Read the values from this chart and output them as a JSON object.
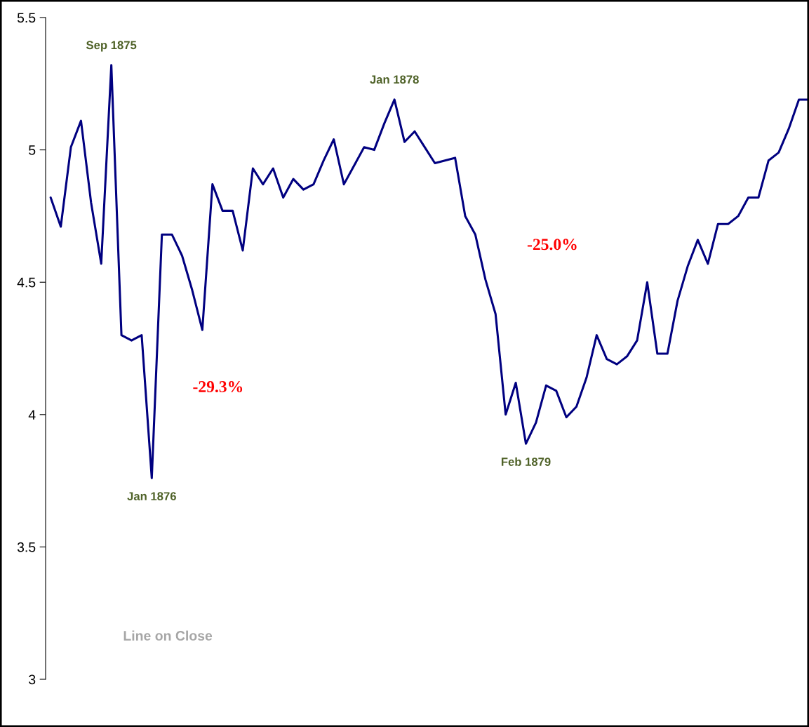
{
  "chart_data": {
    "type": "line",
    "categories": [
      null,
      null,
      null,
      null,
      null,
      null,
      null,
      null,
      null,
      null,
      null,
      null,
      null,
      null,
      null,
      null,
      null,
      null,
      null,
      null,
      null,
      null,
      null,
      null,
      null,
      null,
      null,
      null,
      null,
      null,
      null,
      null,
      null,
      null,
      null,
      null,
      null,
      null,
      null,
      null,
      null,
      null,
      null,
      null,
      null,
      null,
      null,
      null,
      null,
      null,
      null,
      null,
      null,
      null,
      null,
      null,
      null,
      null,
      null,
      null,
      null,
      null,
      null,
      null,
      null,
      null,
      null,
      null,
      null,
      null,
      null,
      null,
      null,
      null,
      null,
      null
    ],
    "series": [
      {
        "color": "#000080",
        "values": [
          4.82,
          4.71,
          5.01,
          5.11,
          4.8,
          4.57,
          5.32,
          4.3,
          4.28,
          4.3,
          3.76,
          4.68,
          4.68,
          4.6,
          4.47,
          4.32,
          4.87,
          4.77,
          4.77,
          4.62,
          4.93,
          4.87,
          4.93,
          4.82,
          4.89,
          4.85,
          4.87,
          4.96,
          5.04,
          4.87,
          4.94,
          5.01,
          5.0,
          5.1,
          5.19,
          5.03,
          5.07,
          5.01,
          4.95,
          4.96,
          4.97,
          4.75,
          4.68,
          4.51,
          4.38,
          4.0,
          4.12,
          3.89,
          3.97,
          4.11,
          4.09,
          3.99,
          4.03,
          4.14,
          4.3,
          4.21,
          4.19,
          4.22,
          4.28,
          4.5,
          4.23,
          4.23,
          4.43,
          4.56,
          4.66,
          4.57,
          4.72,
          4.72,
          4.75,
          4.82,
          4.82,
          4.96,
          4.99,
          5.08,
          5.19,
          5.19
        ]
      }
    ],
    "ylim": [
      3,
      5.5
    ],
    "yticks": [
      3,
      3.5,
      4,
      4.5,
      5,
      5.5
    ],
    "grid": false,
    "marker": "none",
    "line_style": "solid",
    "annotations": [
      {
        "text": "Sep 1875",
        "y": 5.32
      },
      {
        "text": "Jan 1876",
        "y": 3.76
      },
      {
        "text": "Jan 1878",
        "y": 5.19
      },
      {
        "text": "Feb 1879",
        "y": 3.89
      },
      "-29.3%",
      "-25.0%",
      "Line on Close"
    ]
  }
}
